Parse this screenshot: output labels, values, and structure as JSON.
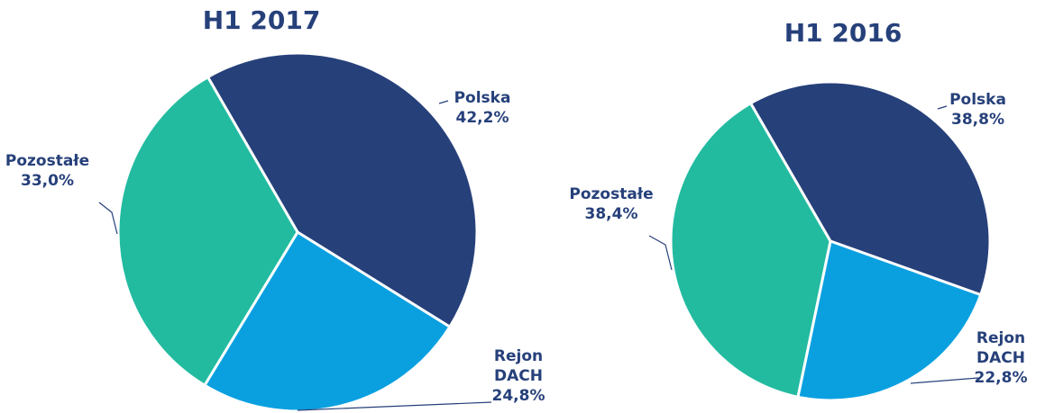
{
  "chart_data": [
    {
      "type": "pie",
      "title": "H1 2017",
      "categories": [
        "Polska",
        "Rejon DACH",
        "Pozostałe"
      ],
      "values": [
        42.2,
        24.8,
        33.0
      ],
      "value_labels": [
        "42,2%",
        "24,8%",
        "33,0%"
      ],
      "colors": [
        "#26407a",
        "#0aa0e0",
        "#22bba0"
      ]
    },
    {
      "type": "pie",
      "title": "H1 2016",
      "categories": [
        "Polska",
        "Rejon DACH",
        "Pozostałe"
      ],
      "values": [
        38.8,
        22.8,
        38.4
      ],
      "value_labels": [
        "38,8%",
        "22,8%",
        "38,4%"
      ],
      "colors": [
        "#26407a",
        "#0aa0e0",
        "#22bba0"
      ]
    }
  ]
}
